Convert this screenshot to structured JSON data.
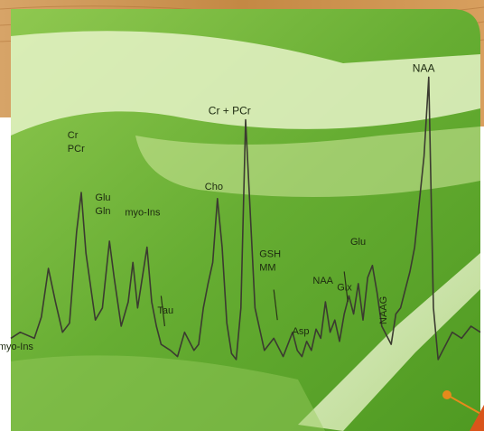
{
  "chart_data": {
    "type": "line",
    "title": "",
    "xlabel": "",
    "ylabel": "",
    "grid": false,
    "legend": "none",
    "x_direction": "descending",
    "x_range": [
      0,
      100
    ],
    "y_range": [
      0,
      100
    ],
    "series": [
      {
        "x": [
          0,
          2,
          5,
          6.5,
          8,
          9.5,
          11,
          12.5,
          14,
          15,
          16,
          18,
          19.5,
          21,
          22,
          23.5,
          25,
          26,
          27,
          28,
          29,
          30,
          31,
          32,
          34,
          35.5,
          37,
          39,
          40,
          41,
          42,
          43,
          44,
          45,
          46,
          47,
          48,
          49,
          50,
          52,
          54,
          56,
          58,
          60,
          61,
          62,
          63,
          64,
          65,
          66,
          67,
          68,
          69,
          70,
          71,
          72,
          73,
          74,
          75,
          76,
          77,
          78,
          79,
          80,
          81,
          82,
          83,
          84,
          85,
          86,
          87,
          88,
          89,
          90,
          91,
          92,
          93,
          94,
          96,
          98,
          100
        ],
        "y": [
          10,
          12,
          10,
          17,
          33,
          22,
          12,
          15,
          45,
          58,
          38,
          16,
          20,
          42,
          30,
          14,
          22,
          35,
          20,
          30,
          40,
          22,
          14,
          8,
          6,
          4,
          12,
          6,
          8,
          20,
          28,
          35,
          56,
          40,
          15,
          5,
          3,
          20,
          82,
          20,
          6,
          10,
          4,
          12,
          6,
          4,
          9,
          6,
          13,
          10,
          22,
          12,
          16,
          9,
          18,
          24,
          18,
          28,
          16,
          30,
          34,
          25,
          14,
          11,
          8,
          18,
          20,
          26,
          32,
          40,
          55,
          70,
          96,
          20,
          3,
          6,
          9,
          12,
          10,
          14,
          12
        ],
        "color": "#3b3b30"
      }
    ],
    "peak_labels": [
      {
        "text": "myo-Ins",
        "x": 6.5,
        "y": 17
      },
      {
        "text": "Cr",
        "x": 14,
        "y": 58
      },
      {
        "text": "PCr",
        "x": 14,
        "y": 58
      },
      {
        "text": "Glu",
        "x": 19.5,
        "y": 42
      },
      {
        "text": "Gln",
        "x": 19.5,
        "y": 42
      },
      {
        "text": "myo-Ins",
        "x": 27,
        "y": 40
      },
      {
        "text": "Tau",
        "x": 32,
        "y": 8
      },
      {
        "text": "Cho",
        "x": 44,
        "y": 56
      },
      {
        "text": "Cr + PCr",
        "x": 49,
        "y": 82
      },
      {
        "text": "GSH",
        "x": 56,
        "y": 10
      },
      {
        "text": "MM",
        "x": 56,
        "y": 10
      },
      {
        "text": "Asp",
        "x": 63,
        "y": 9
      },
      {
        "text": "NAA",
        "x": 67,
        "y": 22
      },
      {
        "text": "Glx",
        "x": 71,
        "y": 18
      },
      {
        "text": "Glu",
        "x": 75,
        "y": 30
      },
      {
        "text": "NAAG",
        "x": 80,
        "y": 11
      },
      {
        "text": "NAA",
        "x": 89,
        "y": 96
      }
    ]
  },
  "colors": {
    "background_green": "#6fb33c",
    "light_green": "#d9ecb4",
    "line": "#3b3b30",
    "accent_orange": "#e58a1c",
    "wood_tan": "#c98f4e"
  }
}
